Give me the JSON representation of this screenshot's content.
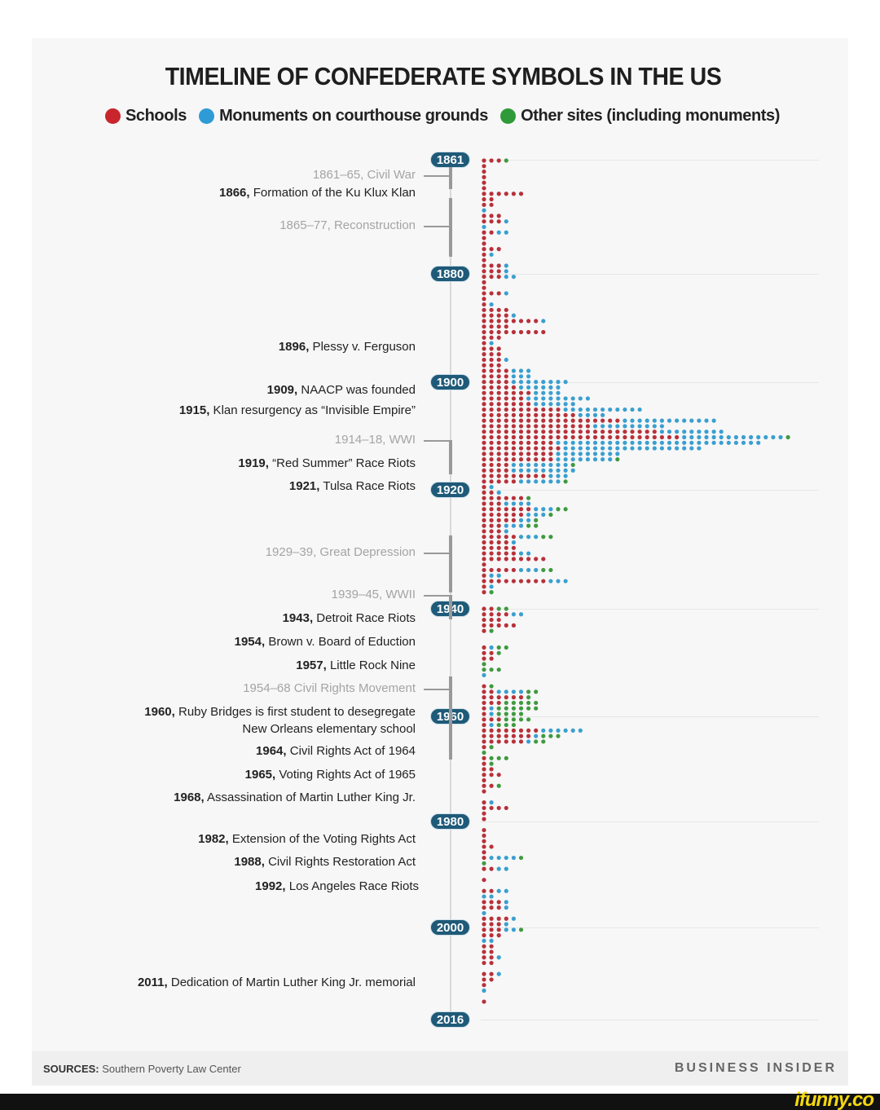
{
  "title": "TIMELINE OF CONFEDERATE SYMBOLS IN THE US",
  "legend": [
    {
      "label": "Schools",
      "color": "#c8262c"
    },
    {
      "label": "Monuments on courthouse grounds",
      "color": "#2e9bd6"
    },
    {
      "label": "Other sites (including monuments)",
      "color": "#2f9a3a"
    }
  ],
  "year_markers": [
    "1861",
    "1880",
    "1900",
    "1920",
    "1940",
    "1960",
    "1980",
    "2000",
    "2016"
  ],
  "periods": [
    {
      "label": "1861–65, Civil War",
      "start": 1861,
      "end": 1865
    },
    {
      "label": "1865–77, Reconstruction",
      "start": 1865,
      "end": 1877
    },
    {
      "label": "1914–18, WWI",
      "start": 1914,
      "end": 1918
    },
    {
      "label": "1929–39, Great Depression",
      "start": 1929,
      "end": 1939
    },
    {
      "label": "1939–45, WWII",
      "start": 1939,
      "end": 1945
    },
    {
      "label": "1954–68 Civil Rights Movement",
      "start": 1954,
      "end": 1968
    }
  ],
  "events": [
    {
      "year": "1866,",
      "text": " Formation of the Ku Klux Klan"
    },
    {
      "year": "1896,",
      "text": " Plessy v. Ferguson"
    },
    {
      "year": "1909,",
      "text": " NAACP was founded"
    },
    {
      "year": "1915,",
      "text": " Klan resurgency as “Invisible Empire”"
    },
    {
      "year": "1919,",
      "text": " “Red Summer” Race Riots"
    },
    {
      "year": "1921,",
      "text": " Tulsa Race Riots"
    },
    {
      "year": "1943,",
      "text": " Detroit Race Riots"
    },
    {
      "year": "1954,",
      "text": " Brown v. Board of Eduction"
    },
    {
      "year": "1957,",
      "text": " Little Rock Nine"
    },
    {
      "year": "1960,",
      "text": " Ruby Bridges is first student to desegregate",
      "text2": "New Orleans elementary school"
    },
    {
      "year": "1964,",
      "text": " Civil Rights Act of 1964"
    },
    {
      "year": "1965,",
      "text": " Voting Rights Act of 1965"
    },
    {
      "year": "1968,",
      "text": " Assassination of Martin Luther King Jr."
    },
    {
      "year": "1982,",
      "text": " Extension of the Voting Rights Act"
    },
    {
      "year": "1988,",
      "text": " Civil Rights Restoration Act"
    },
    {
      "year": "1992,",
      "text": " Los Angeles Race Riots"
    },
    {
      "year": "2011,",
      "text": " Dedication of Martin Luther King Jr. memorial"
    }
  ],
  "footer": {
    "sources_label": "SOURCES:",
    "sources_text": " Southern Poverty Law Center",
    "brand": "BUSINESS INSIDER"
  },
  "watermark": "ifunny.co",
  "chart_data": {
    "type": "dot-timeline",
    "title": "TIMELINE OF CONFEDERATE SYMBOLS IN THE US",
    "x_start_year": 1861,
    "x_end_year": 2016,
    "series_order": [
      "Schools",
      "Monuments on courthouse grounds",
      "Other sites (including monuments)"
    ],
    "counts_per_year": [
      [
        3,
        0,
        1
      ],
      [
        1,
        0,
        0
      ],
      [
        1,
        0,
        0
      ],
      [
        1,
        0,
        0
      ],
      [
        1,
        0,
        0
      ],
      [
        1,
        0,
        0
      ],
      [
        6,
        0,
        0
      ],
      [
        2,
        0,
        0
      ],
      [
        2,
        0,
        0
      ],
      [
        0,
        1,
        0
      ],
      [
        3,
        0,
        0
      ],
      [
        3,
        1,
        0
      ],
      [
        0,
        1,
        0
      ],
      [
        2,
        2,
        0
      ],
      [
        1,
        0,
        0
      ],
      [
        1,
        0,
        0
      ],
      [
        3,
        0,
        0
      ],
      [
        1,
        1,
        0
      ],
      [
        1,
        0,
        0
      ],
      [
        3,
        1,
        0
      ],
      [
        3,
        1,
        0
      ],
      [
        3,
        2,
        0
      ],
      [
        1,
        0,
        0
      ],
      [
        1,
        0,
        0
      ],
      [
        3,
        1,
        0
      ],
      [
        1,
        0,
        0
      ],
      [
        1,
        1,
        0
      ],
      [
        4,
        0,
        0
      ],
      [
        4,
        1,
        0
      ],
      [
        8,
        1,
        0
      ],
      [
        4,
        0,
        0
      ],
      [
        9,
        0,
        0
      ],
      [
        3,
        0,
        0
      ],
      [
        1,
        1,
        0
      ],
      [
        3,
        0,
        0
      ],
      [
        3,
        0,
        0
      ],
      [
        3,
        1,
        0
      ],
      [
        3,
        0,
        0
      ],
      [
        4,
        3,
        0
      ],
      [
        4,
        3,
        0
      ],
      [
        4,
        8,
        0
      ],
      [
        5,
        6,
        0
      ],
      [
        7,
        4,
        0
      ],
      [
        6,
        9,
        0
      ],
      [
        7,
        6,
        0
      ],
      [
        11,
        11,
        0
      ],
      [
        13,
        4,
        0
      ],
      [
        19,
        13,
        0
      ],
      [
        15,
        10,
        0
      ],
      [
        24,
        9,
        0
      ],
      [
        27,
        14,
        1
      ],
      [
        10,
        28,
        0
      ],
      [
        11,
        19,
        0
      ],
      [
        10,
        9,
        0
      ],
      [
        10,
        8,
        1
      ],
      [
        4,
        8,
        1
      ],
      [
        4,
        9,
        0
      ],
      [
        9,
        3,
        0
      ],
      [
        5,
        6,
        1
      ],
      [
        1,
        1,
        0
      ],
      [
        2,
        1,
        0
      ],
      [
        6,
        0,
        1
      ],
      [
        3,
        4,
        0
      ],
      [
        7,
        3,
        2
      ],
      [
        6,
        3,
        1
      ],
      [
        5,
        2,
        1
      ],
      [
        3,
        3,
        2
      ],
      [
        3,
        1,
        0
      ],
      [
        5,
        3,
        2
      ],
      [
        4,
        1,
        0
      ],
      [
        5,
        0,
        0
      ],
      [
        5,
        2,
        0
      ],
      [
        9,
        0,
        0
      ],
      [
        1,
        0,
        0
      ],
      [
        5,
        3,
        2
      ],
      [
        1,
        2,
        0
      ],
      [
        9,
        3,
        0
      ],
      [
        1,
        1,
        0
      ],
      [
        1,
        0,
        1
      ],
      [
        0,
        0,
        0
      ],
      [
        0,
        0,
        0
      ],
      [
        2,
        0,
        2
      ],
      [
        4,
        2,
        0
      ],
      [
        3,
        0,
        0
      ],
      [
        5,
        0,
        0
      ],
      [
        1,
        0,
        1
      ],
      [
        0,
        0,
        0
      ],
      [
        0,
        0,
        0
      ],
      [
        1,
        1,
        2
      ],
      [
        2,
        0,
        1
      ],
      [
        2,
        0,
        0
      ],
      [
        0,
        0,
        1
      ],
      [
        0,
        0,
        3
      ],
      [
        0,
        1,
        0
      ],
      [
        0,
        0,
        0
      ],
      [
        1,
        0,
        1
      ],
      [
        2,
        4,
        2
      ],
      [
        6,
        0,
        1
      ],
      [
        3,
        0,
        5
      ],
      [
        1,
        1,
        6
      ],
      [
        1,
        1,
        4
      ],
      [
        3,
        0,
        4
      ],
      [
        1,
        1,
        3
      ],
      [
        8,
        6,
        0
      ],
      [
        7,
        1,
        3
      ],
      [
        6,
        1,
        2
      ],
      [
        1,
        0,
        1
      ],
      [
        0,
        0,
        1
      ],
      [
        1,
        0,
        3
      ],
      [
        1,
        0,
        1
      ],
      [
        2,
        0,
        0
      ],
      [
        3,
        0,
        0
      ],
      [
        1,
        0,
        0
      ],
      [
        2,
        0,
        1
      ],
      [
        1,
        0,
        0
      ],
      [
        0,
        0,
        0
      ],
      [
        1,
        1,
        0
      ],
      [
        4,
        0,
        0
      ],
      [
        1,
        0,
        0
      ],
      [
        1,
        0,
        0
      ],
      [
        0,
        0,
        0
      ],
      [
        1,
        0,
        0
      ],
      [
        1,
        0,
        0
      ],
      [
        1,
        0,
        0
      ],
      [
        2,
        0,
        0
      ],
      [
        1,
        0,
        0
      ],
      [
        1,
        4,
        1
      ],
      [
        0,
        0,
        1
      ],
      [
        2,
        2,
        0
      ],
      [
        0,
        0,
        0
      ],
      [
        1,
        0,
        0
      ],
      [
        0,
        0,
        0
      ],
      [
        2,
        2,
        0
      ],
      [
        0,
        2,
        0
      ],
      [
        3,
        1,
        0
      ],
      [
        3,
        1,
        0
      ],
      [
        0,
        1,
        0
      ],
      [
        4,
        1,
        0
      ],
      [
        3,
        1,
        0
      ],
      [
        3,
        2,
        1
      ],
      [
        3,
        0,
        0
      ],
      [
        0,
        2,
        0
      ],
      [
        2,
        0,
        0
      ],
      [
        2,
        0,
        0
      ],
      [
        2,
        1,
        0
      ],
      [
        2,
        0,
        0
      ],
      [
        0,
        0,
        0
      ],
      [
        2,
        1,
        0
      ],
      [
        2,
        0,
        0
      ],
      [
        1,
        0,
        0
      ],
      [
        0,
        1,
        0
      ],
      [
        0,
        0,
        0
      ],
      [
        1,
        0,
        0
      ],
      [
        0,
        0,
        0
      ],
      [
        0,
        0,
        0
      ],
      [
        0,
        0,
        0
      ]
    ],
    "grid": true,
    "legend_placement": "top"
  }
}
